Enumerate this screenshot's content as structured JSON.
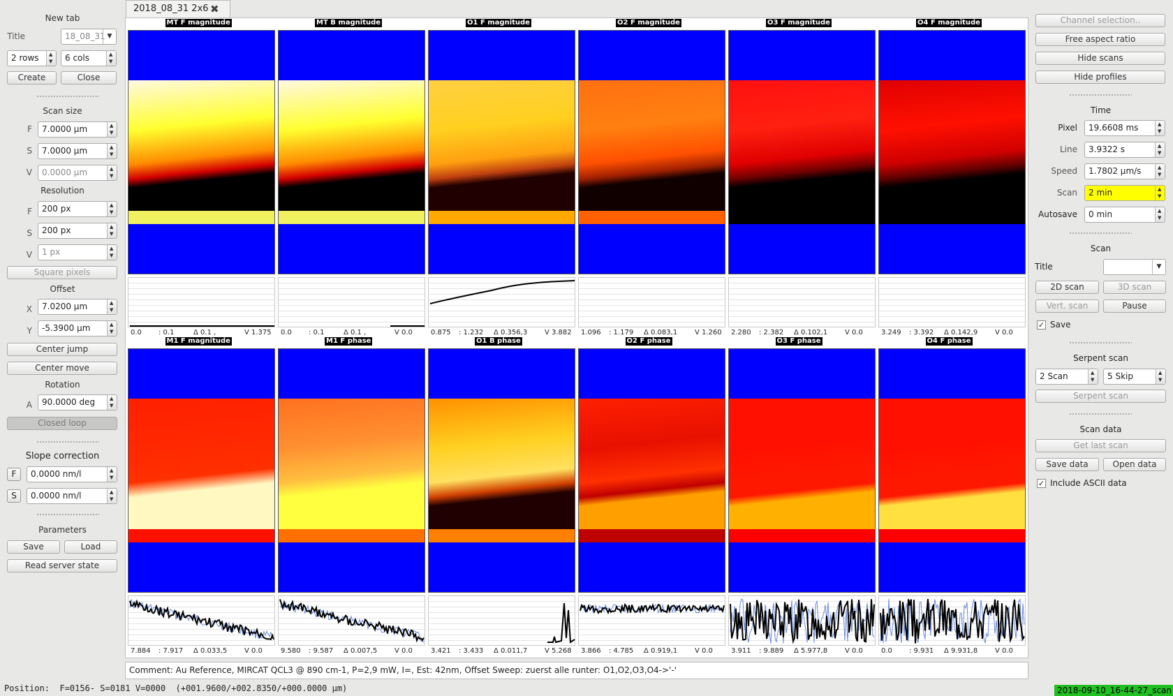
{
  "tab": {
    "title": "2018_08_31 2x6",
    "close_icon": "close-icon"
  },
  "left": {
    "new_tab": {
      "heading": "New tab",
      "title_label": "Title",
      "title_value": "18_08_31",
      "rows": "2 rows",
      "cols": "6 cols",
      "create": "Create",
      "close": "Close"
    },
    "scan_size": {
      "heading": "Scan size",
      "f_label": "F",
      "f": "7.0000 µm",
      "s_label": "S",
      "s": "7.0000 µm",
      "v_label": "V",
      "v": "0.0000 µm"
    },
    "resolution": {
      "heading": "Resolution",
      "f_label": "F",
      "f": "200 px",
      "s_label": "S",
      "s": "200 px",
      "v_label": "V",
      "v": "1 px"
    },
    "square_pixels": "Square pixels",
    "offset": {
      "heading": "Offset",
      "x_label": "X",
      "x": "7.0200 µm",
      "y_label": "Y",
      "y": "-5.3900 µm"
    },
    "center_jump": "Center jump",
    "center_move": "Center move",
    "rotation": {
      "heading": "Rotation",
      "a_label": "A",
      "a": "90.0000 deg"
    },
    "closed_loop": "Closed loop",
    "slope": {
      "heading": "Slope correction",
      "f_label": "F",
      "f": "0.0000 nm/l",
      "s_label": "S",
      "s": "0.0000 nm/l"
    },
    "parameters": {
      "heading": "Parameters",
      "save": "Save",
      "load": "Load",
      "read_server_state": "Read server state"
    }
  },
  "right": {
    "channel_selection": "Channel selection..",
    "free_aspect_ratio": "Free aspect ratio",
    "hide_scans": "Hide scans",
    "hide_profiles": "Hide profiles",
    "time": {
      "heading": "Time",
      "pixel_label": "Pixel",
      "pixel": "19.6608 ms",
      "line_label": "Line",
      "line": "3.9322 s",
      "speed_label": "Speed",
      "speed": "1.7802 µm/s",
      "scan_label": "Scan",
      "scan": "2 min",
      "autosave_label": "Autosave",
      "autosave": "0 min"
    },
    "scan": {
      "heading": "Scan",
      "title_label": "Title",
      "title_value": "",
      "scan2d": "2D scan",
      "scan3d": "3D scan",
      "vert_scan": "Vert. scan",
      "pause": "Pause",
      "save_label": "Save",
      "save_checked": true
    },
    "serpent": {
      "heading": "Serpent scan",
      "scan_count": "2 Scan",
      "skip_count": "5 Skip",
      "serpent_button": "Serpent scan"
    },
    "scan_data": {
      "heading": "Scan data",
      "get_last_scan": "Get last scan",
      "save_data": "Save data",
      "open_data": "Open data",
      "include_ascii_label": "Include ASCII data",
      "include_ascii_checked": true
    }
  },
  "panels": [
    {
      "title": "MT F magnitude",
      "stats": [
        "0.0",
        ": 0.1",
        "Δ  0.1 ,",
        "V  1.375"
      ],
      "colors": [
        "#fff8e0",
        "#ffff30",
        "#ff8c00",
        "#d40000",
        "#000000",
        "#f0f060"
      ],
      "profile": "flat-bottom"
    },
    {
      "title": "MT B magnitude",
      "stats": [
        "0.0",
        ": 0.1",
        "Δ  0.1 ,",
        "V  0.0"
      ],
      "colors": [
        "#fff8e0",
        "#ffff30",
        "#ff8c00",
        "#d40000",
        "#000000",
        "#f0f060"
      ],
      "profile": "tail"
    },
    {
      "title": "O1 F magnitude",
      "stats": [
        "0.875",
        ": 1.232",
        "Δ  0.356,3",
        "V  3.882"
      ],
      "colors": [
        "#ffd040",
        "#ffd020",
        "#ffa010",
        "#c04010",
        "#200000",
        "#ffa800"
      ],
      "profile": "rise"
    },
    {
      "title": "O2 F magnitude",
      "stats": [
        "1.096",
        ": 1.179",
        "Δ  0.083,1",
        "V  1.260"
      ],
      "colors": [
        "#ff7010",
        "#ff8010",
        "#ff5000",
        "#a02000",
        "#100000",
        "#ff6000"
      ],
      "profile": "none"
    },
    {
      "title": "O3 F magnitude",
      "stats": [
        "2.280",
        ": 2.382",
        "Δ  0.102,1",
        "V  0.0"
      ],
      "colors": [
        "#ff1010",
        "#ff2010",
        "#e00000",
        "#700000",
        "#000000",
        "#000000"
      ],
      "profile": "none"
    },
    {
      "title": "O4 F magnitude",
      "stats": [
        "3.249",
        ": 3.392",
        "Δ  0.142,9",
        "V  0.0"
      ],
      "colors": [
        "#e00000",
        "#ff1000",
        "#d00000",
        "#600000",
        "#000000",
        "#000000"
      ],
      "profile": "none"
    },
    {
      "title": "M1 F magnitude",
      "stats": [
        "7.884",
        ": 7.917",
        "Δ  0.033,5",
        "V  0.0"
      ],
      "colors": [
        "#ff2000",
        "#ff2800",
        "#ff3000",
        "#fff8c0",
        "#fff8c0",
        "#ff1000"
      ],
      "profile": "noise-down"
    },
    {
      "title": "M1 F phase",
      "stats": [
        "9.580",
        ": 9.587",
        "Δ  0.007,5",
        "V  0.0"
      ],
      "colors": [
        "#ff7020",
        "#ff9030",
        "#ffc040",
        "#ffff40",
        "#ffff40",
        "#ff7000"
      ],
      "profile": "noise-down"
    },
    {
      "title": "O1 B phase",
      "stats": [
        "3.421",
        ": 3.433",
        "Δ  0.011,7",
        "V  5.268"
      ],
      "colors": [
        "#ff9000",
        "#ffd020",
        "#ffe060",
        "#d04000",
        "#200000",
        "#ff8000"
      ],
      "profile": "spike"
    },
    {
      "title": "O2 F phase",
      "stats": [
        "3.866",
        ": 4.785",
        "Δ  0.919,1",
        "V  0.0"
      ],
      "colors": [
        "#ff2000",
        "#e81000",
        "#ff3000",
        "#c00000",
        "#ffa000",
        "#c00000"
      ],
      "profile": "noise-flat"
    },
    {
      "title": "O3 F phase",
      "stats": [
        "3.911",
        ": 9.889",
        "Δ  5.977,8",
        "V  0.0"
      ],
      "colors": [
        "#ff1000",
        "#ff1000",
        "#ff1800",
        "#ff1800",
        "#ffb000",
        "#ff0000"
      ],
      "profile": "noise-big"
    },
    {
      "title": "O4 F phase",
      "stats": [
        "0.0",
        ": 9.931",
        "Δ  9.931,8",
        "V  0.0"
      ],
      "colors": [
        "#ff1000",
        "#ff1000",
        "#ff1800",
        "#ff1800",
        "#ffe040",
        "#ff0000"
      ],
      "profile": "noise-big"
    }
  ],
  "comment": "Comment: Au Reference, MIRCAT QCL3 @ 890 cm-1, P=2,9 mW, I=, Est: 42nm, Offset Sweep: zuerst alle runter: O1,O2,O3,O4->'-'",
  "status": {
    "position": "Position:  F=0156- S=0181 V=0000  (+001.9600/+002.8350/+000.0000 µm)",
    "file": "2018-09-10_16-44-27_scan"
  }
}
